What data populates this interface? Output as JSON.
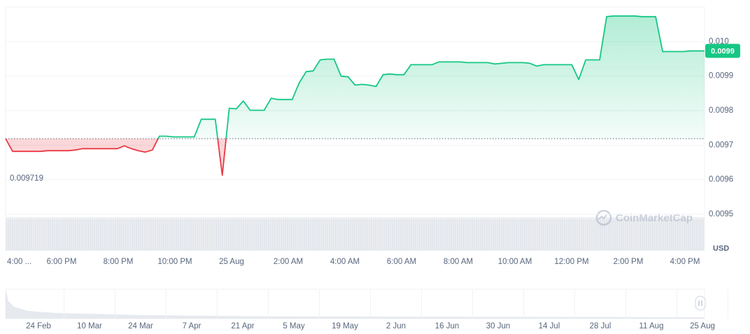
{
  "chart_data": {
    "type": "line",
    "currency": "USD",
    "watermark": "CoinMarketCap",
    "current_price_label": "0.0099",
    "reference_line": {
      "value": 0.009719,
      "label": 0.009719
    },
    "colors": {
      "up": "#16c784",
      "down": "#ea3943"
    },
    "ylim": [
      0.0095,
      0.0101
    ],
    "yticks": [
      {
        "value": 0.01,
        "label": "0.010"
      },
      0.0099,
      0.0098,
      0.0097,
      0.0096,
      0.0095
    ],
    "grid": true,
    "x_labels": [
      "4:00 ...",
      "6:00 PM",
      "8:00 PM",
      "10:00 PM",
      "25 Aug",
      "2:00 AM",
      "4:00 AM",
      "6:00 AM",
      "8:00 AM",
      "10:00 AM",
      "12:00 PM",
      "2:00 PM",
      "4:00 PM"
    ],
    "values": [
      0.009719,
      0.009682,
      0.009682,
      0.009682,
      0.009682,
      0.009682,
      0.009684,
      0.009684,
      0.009684,
      0.009684,
      0.009686,
      0.00969,
      0.00969,
      0.00969,
      0.00969,
      0.00969,
      0.00969,
      0.009698,
      0.00969,
      0.009684,
      0.00968,
      0.009686,
      0.009726,
      0.009726,
      0.009724,
      0.009724,
      0.009724,
      0.009724,
      0.009775,
      0.009775,
      0.009775,
      0.009613,
      0.009807,
      0.009805,
      0.009828,
      0.009801,
      0.009801,
      0.009801,
      0.009836,
      0.009832,
      0.009832,
      0.009832,
      0.00988,
      0.009913,
      0.009915,
      0.009947,
      0.009949,
      0.009949,
      0.0099,
      0.009898,
      0.009874,
      0.009876,
      0.009874,
      0.00987,
      0.009904,
      0.009906,
      0.009904,
      0.009904,
      0.009933,
      0.009933,
      0.009933,
      0.009933,
      0.009941,
      0.009941,
      0.009941,
      0.009941,
      0.009939,
      0.009939,
      0.009939,
      0.009939,
      0.009935,
      0.009937,
      0.009939,
      0.009939,
      0.009939,
      0.009937,
      0.009929,
      0.009933,
      0.009933,
      0.009933,
      0.009933,
      0.009933,
      0.00989,
      0.009947,
      0.009947,
      0.009947,
      0.010072,
      0.010074,
      0.010074,
      0.010074,
      0.010074,
      0.010072,
      0.010072,
      0.010072,
      0.009971,
      0.009971,
      0.009971,
      0.009971,
      0.009973,
      0.009973,
      0.009973
    ],
    "navigator": {
      "labels": [
        "24 Feb",
        "10 Mar",
        "24 Mar",
        "7 Apr",
        "21 Apr",
        "5 May",
        "19 May",
        "2 Jun",
        "16 Jun",
        "30 Jun",
        "14 Jul",
        "28 Jul",
        "11 Aug",
        "25 Aug"
      ]
    }
  }
}
